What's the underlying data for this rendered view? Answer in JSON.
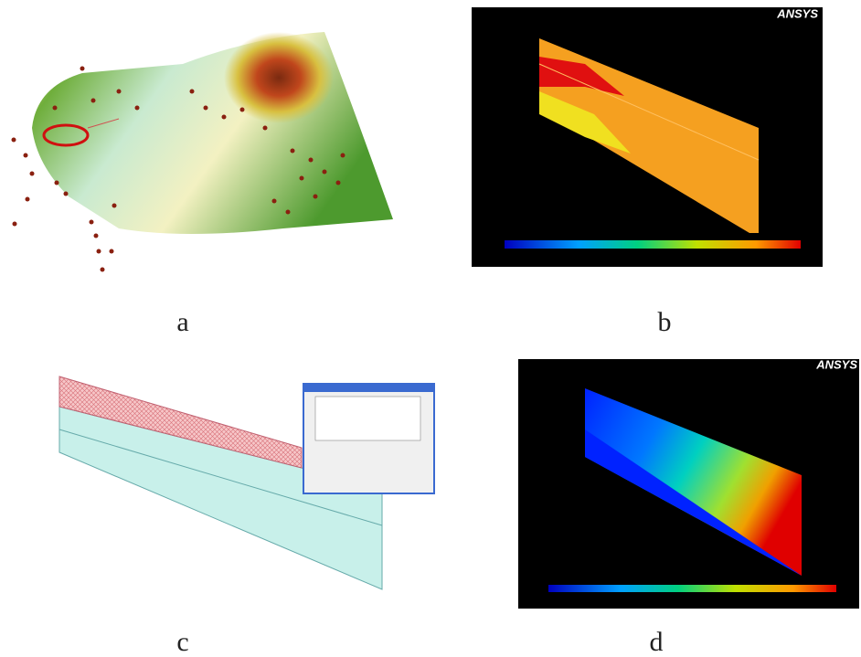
{
  "panels": [
    {
      "label": "a"
    },
    {
      "label": "b",
      "logo": "ANSYS"
    },
    {
      "label": "c"
    },
    {
      "label": "d",
      "logo": "ANSYS"
    }
  ]
}
